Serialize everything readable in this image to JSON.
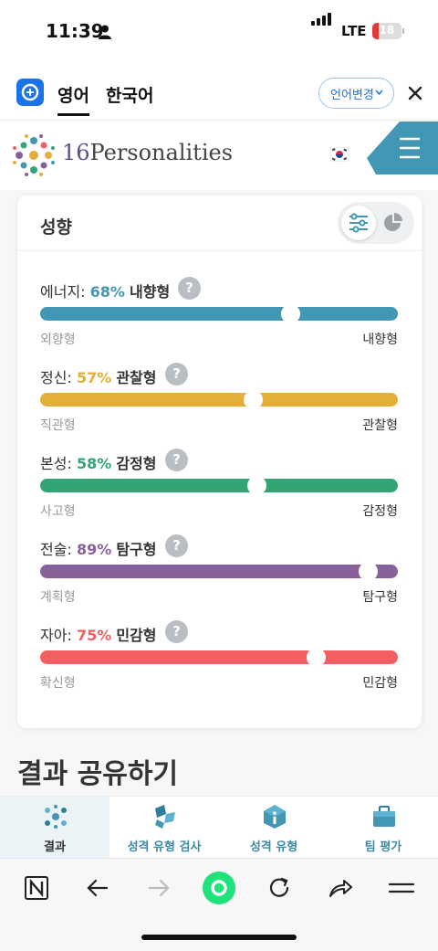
{
  "status_bar": {
    "time": "11:39",
    "network": "LTE",
    "battery": "18"
  },
  "translate_bar": {
    "tab_source": "영어",
    "tab_target": "한국어",
    "change_language": "언어변경"
  },
  "site_header": {
    "brand_number": "16",
    "brand_name": "Personalities"
  },
  "traits_card": {
    "title": "성향",
    "traits": [
      {
        "category": "에너지:",
        "percent": "68%",
        "type": "내향형",
        "left": "외향형",
        "right": "내향형",
        "value": 0.7,
        "color": "#4298b4"
      },
      {
        "category": "정신:",
        "percent": "57%",
        "type": "관찰형",
        "left": "직관형",
        "right": "관찰형",
        "value": 0.595,
        "color": "#e4ae3a"
      },
      {
        "category": "본성:",
        "percent": "58%",
        "type": "감정형",
        "left": "사고형",
        "right": "감정형",
        "value": 0.605,
        "color": "#33a474"
      },
      {
        "category": "전술:",
        "percent": "89%",
        "type": "탐구형",
        "left": "계획형",
        "right": "탐구형",
        "value": 0.915,
        "color": "#88619a"
      },
      {
        "category": "자아:",
        "percent": "75%",
        "type": "민감형",
        "left": "확신형",
        "right": "민감형",
        "value": 0.77,
        "color": "#f25e62"
      }
    ],
    "help_glyph": "?"
  },
  "share_heading": "결과 공유하기",
  "bottom_nav": {
    "items": [
      {
        "label": "결과"
      },
      {
        "label": "성격 유형 검사"
      },
      {
        "label": "성격 유형"
      },
      {
        "label": "팀 평가"
      }
    ]
  }
}
